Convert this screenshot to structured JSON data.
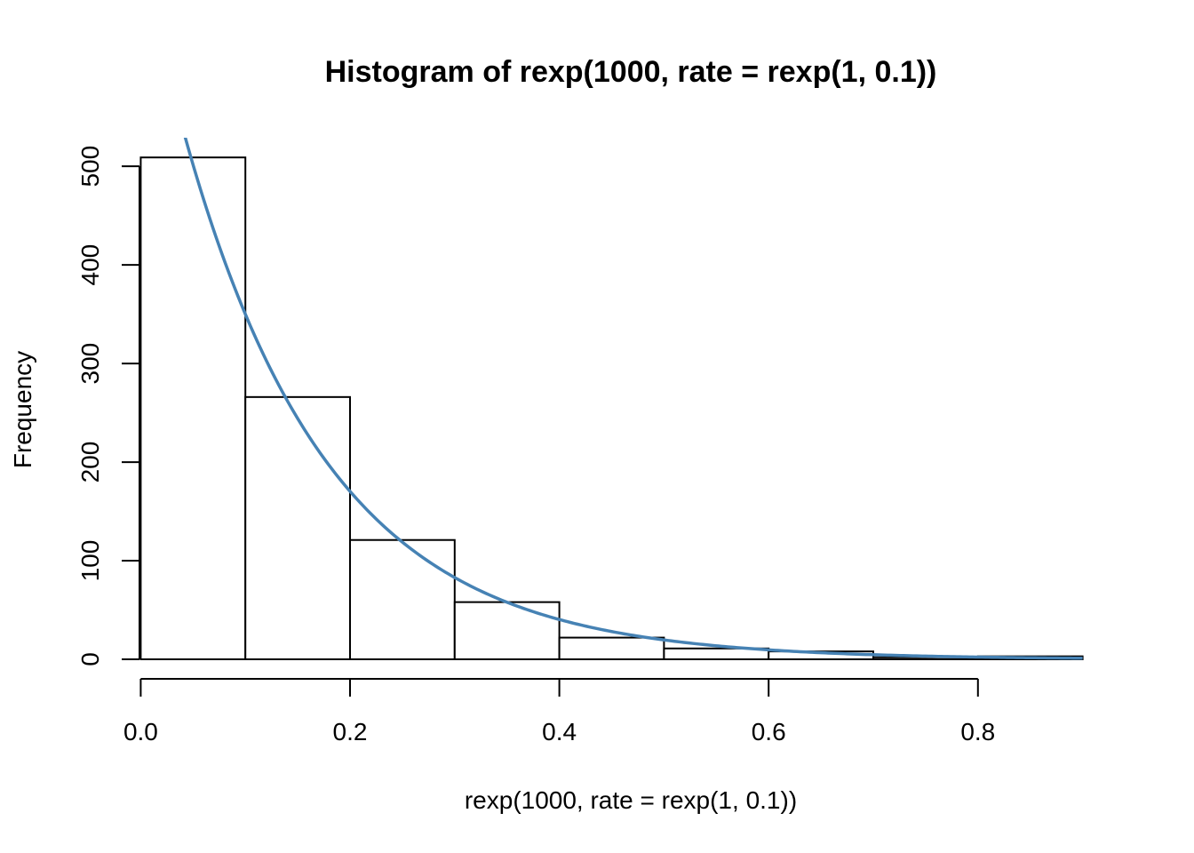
{
  "chart_data": {
    "type": "bar",
    "title": "Histogram of rexp(1000, rate = rexp(1, 0.1))",
    "xlabel": "rexp(1000, rate = rexp(1, 0.1))",
    "ylabel": "Frequency",
    "bins": [
      {
        "x0": 0.0,
        "x1": 0.1,
        "count": 509
      },
      {
        "x0": 0.1,
        "x1": 0.2,
        "count": 266
      },
      {
        "x0": 0.2,
        "x1": 0.3,
        "count": 121
      },
      {
        "x0": 0.3,
        "x1": 0.4,
        "count": 58
      },
      {
        "x0": 0.4,
        "x1": 0.5,
        "count": 22
      },
      {
        "x0": 0.5,
        "x1": 0.6,
        "count": 11
      },
      {
        "x0": 0.6,
        "x1": 0.7,
        "count": 8
      },
      {
        "x0": 0.7,
        "x1": 0.8,
        "count": 2
      },
      {
        "x0": 0.8,
        "x1": 0.9,
        "count": 3
      }
    ],
    "x_ticks": [
      0.0,
      0.2,
      0.4,
      0.6,
      0.8
    ],
    "x_tick_labels": [
      "0.0",
      "0.2",
      "0.4",
      "0.6",
      "0.8"
    ],
    "y_ticks": [
      0,
      100,
      200,
      300,
      400,
      500
    ],
    "y_tick_labels": [
      "0",
      "100",
      "200",
      "300",
      "400",
      "500"
    ],
    "xlim": [
      -0.036,
      0.936
    ],
    "ylim": [
      0,
      529
    ],
    "curve": {
      "type": "exponential-density-scaled",
      "amplitude": 719,
      "rate": 7.2,
      "x_range": [
        0.0,
        0.9
      ],
      "color": "#4682B4"
    },
    "bar_fill": "#ffffff",
    "bar_stroke": "#000000",
    "grid": false,
    "legend": "none"
  }
}
